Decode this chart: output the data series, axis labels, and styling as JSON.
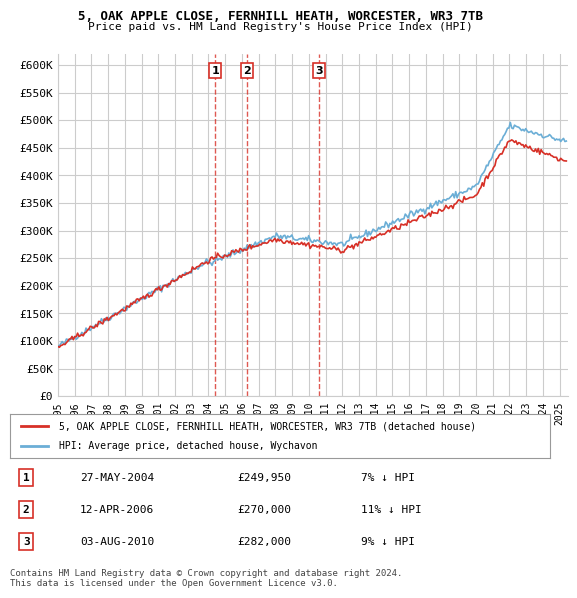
{
  "title": "5, OAK APPLE CLOSE, FERNHILL HEATH, WORCESTER, WR3 7TB",
  "subtitle": "Price paid vs. HM Land Registry's House Price Index (HPI)",
  "ylabel_ticks": [
    "£0",
    "£50K",
    "£100K",
    "£150K",
    "£200K",
    "£250K",
    "£300K",
    "£350K",
    "£400K",
    "£450K",
    "£500K",
    "£550K",
    "£600K"
  ],
  "ytick_values": [
    0,
    50000,
    100000,
    150000,
    200000,
    250000,
    300000,
    350000,
    400000,
    450000,
    500000,
    550000,
    600000
  ],
  "ylim": [
    0,
    620000
  ],
  "xlim_start": 1995.0,
  "xlim_end": 2025.5,
  "hpi_color": "#6baed6",
  "price_color": "#d73027",
  "vline_color": "#d73027",
  "grid_color": "#cccccc",
  "bg_color": "#ffffff",
  "sale_dates": [
    2004.41,
    2006.28,
    2010.59
  ],
  "sale_prices": [
    249950,
    270000,
    282000
  ],
  "sale_labels": [
    "1",
    "2",
    "3"
  ],
  "legend_label_price": "5, OAK APPLE CLOSE, FERNHILL HEATH, WORCESTER, WR3 7TB (detached house)",
  "legend_label_hpi": "HPI: Average price, detached house, Wychavon",
  "table_rows": [
    [
      "1",
      "27-MAY-2004",
      "£249,950",
      "7% ↓ HPI"
    ],
    [
      "2",
      "12-APR-2006",
      "£270,000",
      "11% ↓ HPI"
    ],
    [
      "3",
      "03-AUG-2010",
      "£282,000",
      "9% ↓ HPI"
    ]
  ],
  "footnote1": "Contains HM Land Registry data © Crown copyright and database right 2024.",
  "footnote2": "This data is licensed under the Open Government Licence v3.0."
}
